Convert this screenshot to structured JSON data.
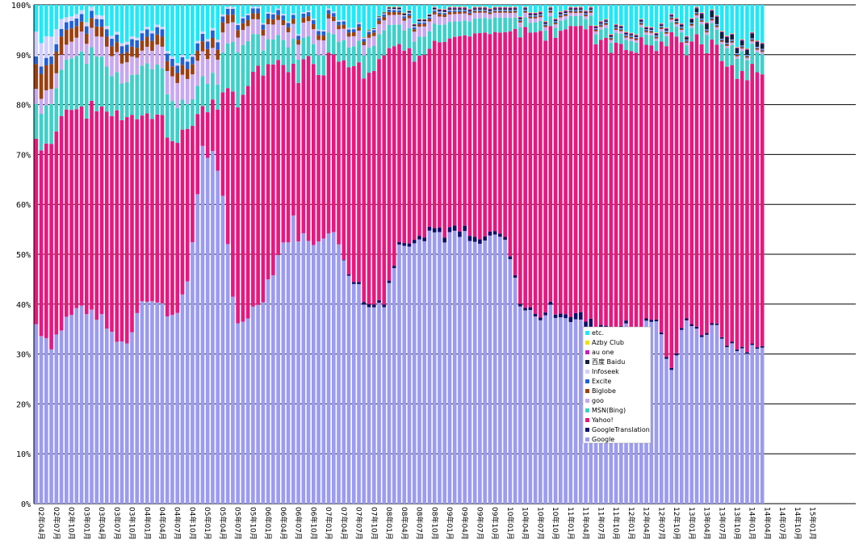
{
  "chart_data": {
    "type": "bar",
    "stacked": true,
    "ylim": [
      0,
      100
    ],
    "yticks": [
      "0%",
      "10%",
      "20%",
      "30%",
      "40%",
      "50%",
      "60%",
      "70%",
      "80%",
      "90%",
      "100%"
    ],
    "grid": true,
    "legend_position": "center-right",
    "x_labels": [
      "02年04月",
      "02年07月",
      "02年10月",
      "03年01月",
      "03年04月",
      "03年07月",
      "03年10月",
      "04年01月",
      "04年04月",
      "04年07月",
      "04年10月",
      "05年01月",
      "05年04月",
      "05年07月",
      "05年10月",
      "06年01月",
      "06年04月",
      "06年07月",
      "06年10月",
      "07年01月",
      "07年04月",
      "07年07月",
      "07年10月",
      "08年01月",
      "08年04月",
      "08年07月",
      "08年10月",
      "09年01月",
      "09年04月",
      "09年07月",
      "09年10月",
      "10年01月",
      "10年04月",
      "10年07月",
      "10年10月",
      "11年01月",
      "11年04月",
      "11年07月",
      "11年10月",
      "12年01月",
      "12年04月",
      "12年07月",
      "12年10月",
      "13年01月",
      "13年04月",
      "13年07月",
      "13年10月",
      "14年01月",
      "14年04月",
      "14年07月",
      "14年10月",
      "15年01月"
    ],
    "series_order_bottom_to_top": [
      "Google",
      "GoogleTranslation",
      "Yahoo!",
      "MSN(Bing)",
      "goo",
      "Biglobe",
      "Excite",
      "Infoseek",
      "百度 Baidu",
      "au one",
      "Azby Club",
      "etc."
    ],
    "series_colors": {
      "Google": "#9b9bf0",
      "GoogleTranslation": "#10106a",
      "Yahoo!": "#e6187e",
      "MSN(Bing)": "#3fd0c8",
      "goo": "#c8a8f0",
      "Biglobe": "#9c4010",
      "Excite": "#2060d8",
      "Infoseek": "#cfcfff",
      "百度 Baidu": "#102040",
      "au one": "#c020c0",
      "Azby Club": "#f0e010",
      "etc.": "#20e8f8"
    },
    "anchors": {
      "months": [
        0,
        3,
        6,
        9,
        12,
        15,
        18,
        21,
        24,
        27,
        30,
        33,
        36,
        37,
        39,
        40,
        42,
        45,
        48,
        51,
        54,
        57,
        60,
        63,
        66,
        69,
        72,
        75,
        78,
        81,
        84,
        87,
        90,
        93,
        96,
        99,
        102,
        105,
        108,
        111,
        114,
        117,
        120,
        123,
        126,
        129,
        132,
        135,
        138,
        141,
        144
      ],
      "Google": [
        36,
        32,
        37,
        39.5,
        38,
        34,
        32,
        42,
        40,
        38,
        43,
        72,
        68,
        60,
        41,
        36,
        38,
        42,
        50,
        56,
        52,
        55,
        52,
        45,
        39,
        41,
        52,
        54,
        55,
        54,
        54,
        52,
        54,
        53,
        41,
        37,
        39,
        38,
        36,
        34,
        35,
        35,
        35,
        37,
        26,
        38,
        34,
        35,
        31,
        31,
        31
      ],
      "GoogleTranslation": [
        0,
        0,
        0,
        0,
        0,
        0,
        0,
        0,
        0,
        0,
        0,
        0,
        0,
        0,
        0,
        0,
        0,
        0,
        0,
        0,
        0,
        0,
        0,
        0.4,
        0.6,
        0.5,
        0.5,
        0.7,
        0.8,
        1,
        1.1,
        1,
        0.8,
        0.6,
        0.5,
        0.5,
        0.6,
        0.8,
        1.5,
        1.8,
        1,
        0.6,
        0.5,
        0.4,
        0.4,
        0.4,
        0.4,
        0.3,
        0.3,
        0.3,
        0.3
      ],
      "Yahoo!": [
        37,
        40,
        43,
        40,
        42,
        44,
        46,
        36,
        38,
        36,
        31,
        8,
        12,
        20,
        41,
        45,
        47,
        46,
        38,
        31,
        36,
        34,
        38,
        44,
        48,
        49,
        40,
        37,
        36,
        38,
        38,
        40,
        41,
        41,
        54,
        58,
        56,
        56,
        59,
        59,
        57,
        56,
        58,
        55,
        65,
        54,
        59,
        55,
        55,
        55,
        55
      ],
      "MSN(Bing)": [
        7,
        8,
        10,
        11,
        11,
        8,
        7,
        10,
        10,
        8,
        5,
        6,
        5,
        8,
        10,
        11,
        9,
        5,
        5,
        5,
        4,
        4,
        4,
        4,
        5,
        5,
        4,
        4,
        3.5,
        3.5,
        3,
        3,
        3,
        3,
        2,
        2,
        2,
        2,
        2,
        2,
        2,
        2,
        2,
        2,
        2,
        2,
        4,
        3,
        4,
        4,
        4
      ],
      "goo": [
        3,
        3,
        3,
        4,
        4,
        4,
        4,
        3,
        4,
        5,
        5,
        5,
        5,
        4,
        4,
        3,
        3,
        3,
        3,
        3,
        3,
        3,
        2.5,
        2,
        2,
        2,
        2,
        2,
        2,
        1.5,
        1.5,
        1.2,
        1,
        1,
        1,
        0.8,
        0.7,
        0.7,
        0.6,
        0.6,
        0.6,
        0.5,
        0.5,
        0.5,
        0.5,
        0.5,
        0.5,
        0.5,
        0.5,
        0.5,
        0.5
      ],
      "Biglobe": [
        5,
        5,
        3,
        2,
        2,
        2,
        2,
        2,
        2,
        2,
        2,
        2,
        2,
        2,
        1.5,
        1.5,
        1.2,
        1.2,
        1,
        1,
        1,
        1,
        0.8,
        0.8,
        0.7,
        0.7,
        0.5,
        0.5,
        0.5,
        0.5,
        0.4,
        0.3,
        0.3,
        0.3,
        0.3,
        0.3,
        0.3,
        0.3,
        0.3,
        0.3,
        0.3,
        0.3,
        0.3,
        0.3,
        0.3,
        0.3,
        0.3,
        0.3,
        0.3,
        0.3,
        0.3
      ],
      "Excite": [
        1.5,
        1.5,
        1.5,
        1.5,
        1.5,
        1.5,
        1.5,
        1.5,
        1.5,
        1.5,
        1.5,
        1.5,
        1.5,
        1.2,
        1.2,
        1,
        1,
        1,
        1,
        0.8,
        0.8,
        0.8,
        0.7,
        0.6,
        0.5,
        0.5,
        0.4,
        0.4,
        0.3,
        0.3,
        0.3,
        0.2,
        0.2,
        0.2,
        0.2,
        0.2,
        0.2,
        0.2,
        0.2,
        0.2,
        0.2,
        0.2,
        0.2,
        0.2,
        0.2,
        0.2,
        0.2,
        0.2,
        0.2,
        0.2,
        0.2
      ],
      "Infoseek": [
        5,
        4,
        1,
        0.8,
        0.8,
        0.6,
        0.6,
        0.5,
        0.5,
        0.5,
        0.5,
        0.5,
        0.5,
        0.4,
        0.4,
        0.3,
        0.3,
        0.3,
        0.3,
        0.3,
        0.3,
        0.3,
        0.3,
        0.3,
        0.2,
        0.2,
        0.2,
        0.2,
        0.2,
        0.2,
        0.1,
        0.1,
        0.1,
        0.1,
        0.1,
        0.1,
        0.1,
        0.1,
        0.1,
        0.1,
        0.1,
        0.1,
        0.1,
        0.1,
        0.1,
        0.1,
        0.1,
        0.1,
        0.1,
        0.1,
        0.1
      ],
      "百度 Baidu": [
        0,
        0,
        0,
        0,
        0,
        0,
        0,
        0,
        0,
        0,
        0,
        0,
        0,
        0,
        0,
        0,
        0,
        0,
        0,
        0,
        0,
        0,
        0,
        0,
        0.1,
        0.2,
        0.3,
        0.3,
        0.3,
        0.3,
        0.3,
        0.3,
        0.3,
        0.3,
        0.3,
        0.3,
        0.3,
        0.3,
        0.3,
        0.3,
        0.3,
        0.3,
        0.3,
        0.3,
        0.3,
        0.5,
        1,
        1.5,
        1,
        1,
        1
      ],
      "au one": [
        0,
        0,
        0,
        0,
        0,
        0,
        0,
        0,
        0,
        0,
        0,
        0,
        0,
        0,
        0,
        0,
        0,
        0,
        0,
        0,
        0,
        0,
        0,
        0,
        0,
        0,
        0.1,
        0.1,
        0.1,
        0.2,
        0.2,
        0.2,
        0.2,
        0.2,
        0.2,
        0.2,
        0.2,
        0.2,
        0.2,
        0.2,
        0.2,
        0.2,
        0.2,
        0.2,
        0.2,
        0.2,
        0.2,
        0.2,
        0.2,
        0.2,
        0.2
      ],
      "Azby Club": [
        0,
        0,
        0,
        0,
        0,
        0,
        0,
        0,
        0,
        0,
        0,
        0,
        0,
        0,
        0,
        0,
        0,
        0,
        0,
        0,
        0,
        0,
        0,
        0,
        0.1,
        0.1,
        0.1,
        0.1,
        0.1,
        0.1,
        0.1,
        0.1,
        0.1,
        0.1,
        0.1,
        0.1,
        0.1,
        0.1,
        0.1,
        0.1,
        0.1,
        0.1,
        0.1,
        0.1,
        0.1,
        0.1,
        0.1,
        0.1,
        0.1,
        0.1,
        0.1
      ]
    },
    "bar_count": 145,
    "quarter_labels_shown": 52
  }
}
